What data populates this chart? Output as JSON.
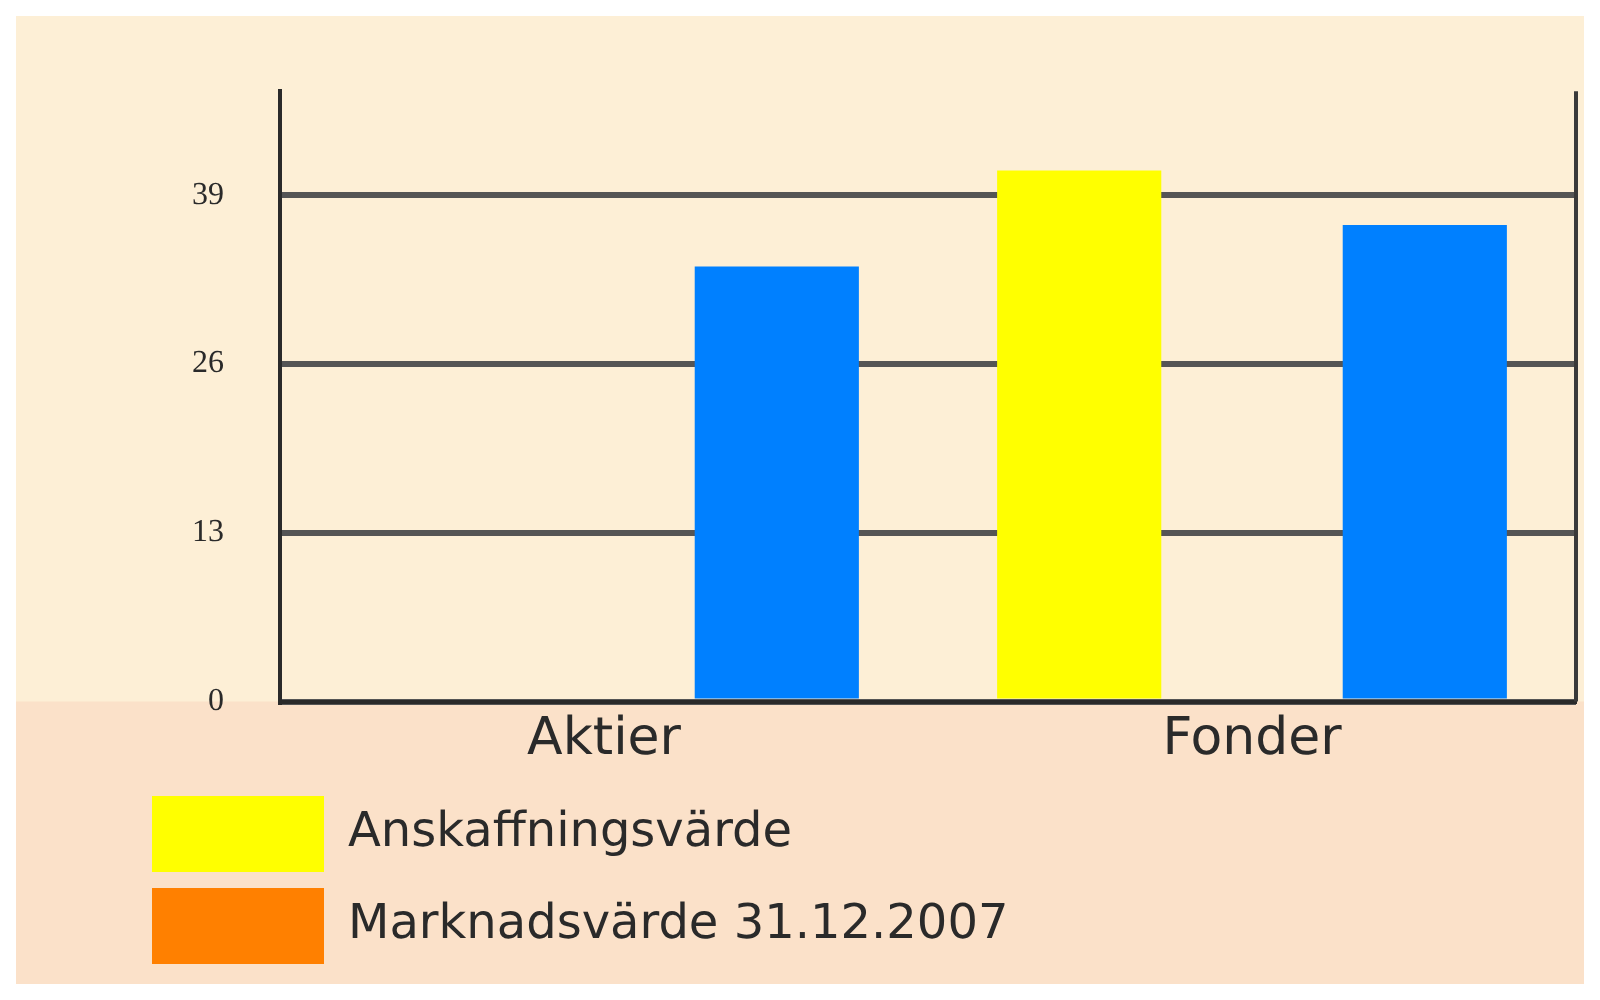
{
  "chart_data": {
    "type": "bar",
    "categories": [
      "Aktier",
      "Fonder"
    ],
    "series": [
      {
        "name": "Anskaffningsvärde",
        "color": "#ffff00",
        "values": [
          null,
          40.9
        ]
      },
      {
        "name": "Marknadsvärde 31.12.2007",
        "color": "#ff8000",
        "values": [
          null,
          null
        ]
      },
      {
        "color": "#0080ff",
        "values": [
          33.5,
          36.7
        ]
      }
    ],
    "ylim": [
      0,
      47
    ],
    "yticks": [
      0,
      13,
      26,
      39
    ],
    "grid": "y",
    "legend": "bottom left"
  }
}
